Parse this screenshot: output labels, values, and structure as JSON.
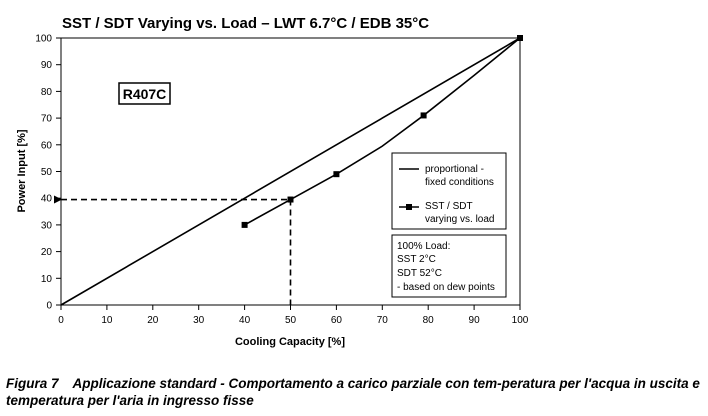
{
  "chart_data": {
    "type": "line",
    "title": "SST / SDT Varying vs. Load – LWT 6.7°C / EDB 35°C",
    "xlabel": "Cooling Capacity [%]",
    "ylabel": "Power Input [%]",
    "xlim": [
      0,
      100
    ],
    "ylim": [
      0,
      100
    ],
    "x_ticks": [
      "0",
      "10",
      "20",
      "30",
      "40",
      "50",
      "60",
      "70",
      "80",
      "90",
      "100"
    ],
    "y_ticks": [
      "0",
      "10",
      "20",
      "30",
      "40",
      "50",
      "60",
      "70",
      "80",
      "90",
      "100"
    ],
    "grid": false,
    "legend_position": "right",
    "annotation": "R407C",
    "series": [
      {
        "name_lines": [
          "proportional -",
          "fixed conditions"
        ],
        "marker": "none",
        "points": [
          [
            0,
            0
          ],
          [
            100,
            100
          ]
        ]
      },
      {
        "name_lines": [
          "SST / SDT",
          "varying vs. load"
        ],
        "marker": "square",
        "points": [
          [
            40,
            30
          ],
          [
            50,
            39.5
          ],
          [
            60,
            49
          ],
          [
            70,
            59.5
          ],
          [
            79,
            71
          ],
          [
            90,
            86
          ],
          [
            100,
            100
          ]
        ],
        "marker_points": [
          [
            40,
            30
          ],
          [
            50,
            39.5
          ],
          [
            60,
            49
          ],
          [
            79,
            71
          ],
          [
            100,
            100
          ]
        ]
      }
    ],
    "reference_lines": [
      {
        "from": [
          0,
          39.5
        ],
        "to": [
          50,
          39.5
        ],
        "arrow": "start"
      },
      {
        "from": [
          50,
          39.5
        ],
        "to": [
          50,
          0
        ],
        "arrow": "none"
      }
    ],
    "info_box_lines": [
      "100% Load:",
      "SST 2°C",
      "SDT 52°C",
      "- based on dew points"
    ]
  },
  "caption": {
    "label": "Figura 7",
    "text": "Applicazione standard - Comportamento a carico parziale con tem-peratura per l'acqua in uscita e temperatura per l'aria in ingresso fisse"
  }
}
